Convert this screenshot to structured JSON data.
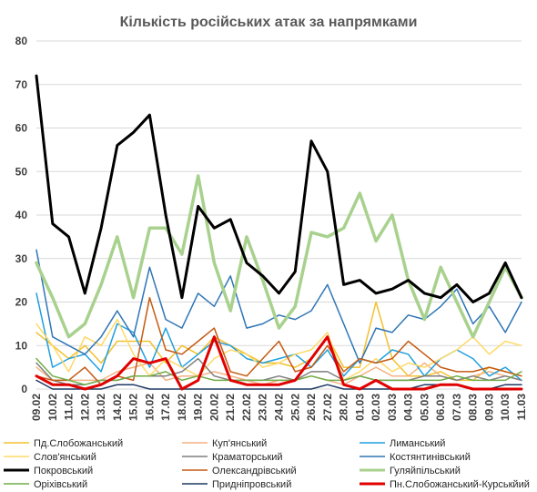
{
  "chart_data": {
    "type": "line",
    "title": "Кількість російських атак за напрямками",
    "xlabel": "",
    "ylabel": "",
    "ylim": [
      0,
      80
    ],
    "yticks": [
      0,
      10,
      20,
      30,
      40,
      50,
      60,
      70,
      80
    ],
    "grid": true,
    "legend_position": "bottom",
    "x": [
      "09.02",
      "10.02",
      "11.02",
      "12.02",
      "13.02",
      "14.02",
      "15.02",
      "16.02",
      "17.02",
      "18.02",
      "19.02",
      "20.02",
      "21.02",
      "22.02",
      "23.02",
      "24.02",
      "25.02",
      "26.02",
      "27.02",
      "28.02",
      "01.03",
      "02.03",
      "03.03",
      "04.03",
      "05.03",
      "06.03",
      "07.03",
      "08.03",
      "09.03",
      "10.03",
      "11.03"
    ],
    "series": [
      {
        "name": "Пд.Слобожанський",
        "color": "#f2c12e",
        "width": 1.5,
        "values": [
          13,
          10,
          7,
          10,
          6,
          11,
          11,
          11,
          6,
          10,
          8,
          12,
          10,
          8,
          6,
          6,
          5,
          7,
          12,
          5,
          5,
          20,
          7,
          3,
          3,
          4,
          2,
          2,
          5,
          4,
          3
        ]
      },
      {
        "name": "Куп'янський",
        "color": "#f4b183",
        "width": 1.5,
        "values": [
          5,
          2,
          2,
          2,
          2,
          4,
          5,
          6,
          2,
          3,
          3,
          4,
          3,
          2,
          1,
          2,
          2,
          3,
          2,
          1,
          3,
          5,
          3,
          3,
          6,
          3,
          2,
          3,
          4,
          3,
          2
        ]
      },
      {
        "name": "Лиманський",
        "color": "#1f9fe0",
        "width": 1.5,
        "values": [
          22,
          5,
          7,
          8,
          4,
          15,
          13,
          5,
          14,
          5,
          8,
          11,
          10,
          7,
          6,
          7,
          8,
          5,
          9,
          3,
          7,
          6,
          9,
          8,
          3,
          7,
          9,
          7,
          3,
          5,
          2
        ]
      },
      {
        "name": "Слов'янський",
        "color": "#ffd966",
        "width": 1.5,
        "values": [
          15,
          10,
          4,
          12,
          10,
          16,
          8,
          3,
          7,
          5,
          3,
          7,
          9,
          8,
          5,
          6,
          8,
          9,
          13,
          2,
          4,
          7,
          4,
          6,
          5,
          7,
          9,
          12,
          8,
          11,
          10
        ]
      },
      {
        "name": "Краматорський",
        "color": "#7f7f7f",
        "width": 1.5,
        "values": [
          6,
          2,
          1,
          1,
          2,
          2,
          3,
          3,
          3,
          4,
          7,
          3,
          2,
          2,
          2,
          3,
          2,
          4,
          4,
          2,
          3,
          2,
          2,
          2,
          3,
          3,
          2,
          3,
          2,
          3,
          2
        ]
      },
      {
        "name": "Костянтинівський",
        "color": "#2e75b6",
        "width": 1.5,
        "values": [
          32,
          12,
          10,
          8,
          12,
          18,
          12,
          28,
          16,
          14,
          22,
          19,
          26,
          14,
          15,
          17,
          16,
          18,
          24,
          15,
          6,
          14,
          13,
          17,
          16,
          19,
          23,
          15,
          19,
          13,
          20
        ]
      },
      {
        "name": "Покровський",
        "color": "#000000",
        "width": 3,
        "values": [
          72,
          38,
          35,
          22,
          37,
          56,
          59,
          63,
          40,
          21,
          42,
          37,
          39,
          29,
          26,
          22,
          27,
          57,
          50,
          24,
          25,
          22,
          23,
          25,
          22,
          21,
          24,
          20,
          22,
          29,
          21
        ]
      },
      {
        "name": "Олександрівський",
        "color": "#c55a11",
        "width": 1.5,
        "values": [
          3,
          2,
          2,
          5,
          1,
          3,
          2,
          21,
          9,
          8,
          11,
          14,
          4,
          3,
          7,
          11,
          4,
          5,
          10,
          4,
          7,
          6,
          7,
          11,
          8,
          5,
          4,
          4,
          5,
          4,
          3
        ]
      },
      {
        "name": "Гуляйпільський",
        "color": "#a9d18e",
        "width": 3.5,
        "values": [
          29,
          21,
          12,
          15,
          24,
          35,
          21,
          37,
          37,
          31,
          49,
          29,
          18,
          35,
          25,
          14,
          19,
          36,
          35,
          37,
          45,
          34,
          40,
          25,
          16,
          28,
          20,
          12,
          20,
          28,
          21
        ]
      },
      {
        "name": "Оріхівський",
        "color": "#70ad47",
        "width": 1.5,
        "values": [
          7,
          3,
          2,
          1,
          2,
          2,
          3,
          3,
          4,
          2,
          3,
          2,
          2,
          2,
          2,
          2,
          2,
          3,
          2,
          2,
          3,
          2,
          2,
          2,
          2,
          2,
          3,
          2,
          2,
          2,
          4
        ]
      },
      {
        "name": "Придніпровський",
        "color": "#1f3864",
        "width": 1.5,
        "values": [
          2,
          0,
          0,
          0,
          0,
          1,
          1,
          0,
          0,
          0,
          0,
          0,
          0,
          0,
          0,
          0,
          0,
          0,
          1,
          0,
          0,
          0,
          0,
          0,
          1,
          1,
          1,
          0,
          0,
          1,
          1
        ]
      },
      {
        "name": "Пн.Слобожанський-Курськйий",
        "color": "#e00000",
        "width": 3,
        "values": [
          3,
          1,
          1,
          0,
          1,
          3,
          7,
          6,
          7,
          0,
          2,
          12,
          2,
          1,
          1,
          1,
          2,
          7,
          12,
          1,
          0,
          2,
          0,
          0,
          0,
          1,
          1,
          0,
          0,
          0,
          0
        ]
      }
    ]
  }
}
